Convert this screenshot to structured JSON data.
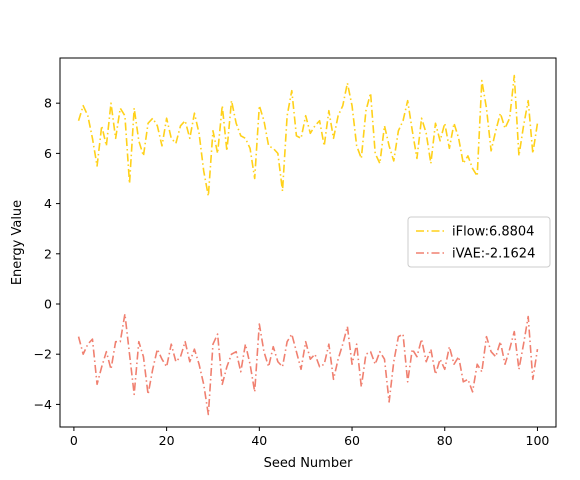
{
  "chart_data": {
    "type": "line",
    "title": "",
    "xlabel": "Seed Number",
    "ylabel": "Energy Value",
    "xlim": [
      -3,
      104
    ],
    "ylim": [
      -4.9,
      9.8
    ],
    "xticks": [
      0,
      20,
      40,
      60,
      80,
      100
    ],
    "yticks": [
      -4,
      -2,
      0,
      2,
      4,
      6,
      8
    ],
    "grid": false,
    "legend_position": "center-right",
    "series": [
      {
        "name": "iFlow:6.8804",
        "color": "#FFD11A",
        "linestyle": "dashdot",
        "x": [
          1,
          2,
          3,
          4,
          5,
          6,
          7,
          8,
          9,
          10,
          11,
          12,
          13,
          14,
          15,
          16,
          17,
          18,
          19,
          20,
          21,
          22,
          23,
          24,
          25,
          26,
          27,
          28,
          29,
          30,
          31,
          32,
          33,
          34,
          35,
          36,
          37,
          38,
          39,
          40,
          41,
          42,
          43,
          44,
          45,
          46,
          47,
          48,
          49,
          50,
          51,
          52,
          53,
          54,
          55,
          56,
          57,
          58,
          59,
          60,
          61,
          62,
          63,
          64,
          65,
          66,
          67,
          68,
          69,
          70,
          71,
          72,
          73,
          74,
          75,
          76,
          77,
          78,
          79,
          80,
          81,
          82,
          83,
          84,
          85,
          86,
          87,
          88,
          89,
          90,
          91,
          92,
          93,
          94,
          95,
          96,
          97,
          98,
          99,
          100
        ],
        "y": [
          7.3,
          7.9,
          7.5,
          6.6,
          5.5,
          7.1,
          6.3,
          8.0,
          6.6,
          7.8,
          7.5,
          4.8,
          7.8,
          6.5,
          5.9,
          7.2,
          7.4,
          7.1,
          6.3,
          7.4,
          6.6,
          6.4,
          7.1,
          7.3,
          6.6,
          7.6,
          6.8,
          5.3,
          4.3,
          6.9,
          6.0,
          7.9,
          6.1,
          8.1,
          7.2,
          6.7,
          6.6,
          6.2,
          5.0,
          7.9,
          7.3,
          6.3,
          6.2,
          6.0,
          4.5,
          7.5,
          8.5,
          6.7,
          6.6,
          7.5,
          6.8,
          7.1,
          7.3,
          6.3,
          7.7,
          6.6,
          7.5,
          7.9,
          8.8,
          7.9,
          6.3,
          5.8,
          7.7,
          8.4,
          6.0,
          5.6,
          7.1,
          6.3,
          5.7,
          6.9,
          7.3,
          8.1,
          6.9,
          5.8,
          7.4,
          6.8,
          5.6,
          7.2,
          6.5,
          7.2,
          6.2,
          7.2,
          6.6,
          5.6,
          5.9,
          5.4,
          5.1,
          8.9,
          7.8,
          6.1,
          6.9,
          7.6,
          7.0,
          7.4,
          9.1,
          5.9,
          7.1,
          8.1,
          6.0,
          7.2
        ]
      },
      {
        "name": "iVAE:-2.1624",
        "color": "#F08070",
        "linestyle": "dashdot",
        "x": [
          1,
          2,
          3,
          4,
          5,
          6,
          7,
          8,
          9,
          10,
          11,
          12,
          13,
          14,
          15,
          16,
          17,
          18,
          19,
          20,
          21,
          22,
          23,
          24,
          25,
          26,
          27,
          28,
          29,
          30,
          31,
          32,
          33,
          34,
          35,
          36,
          37,
          38,
          39,
          40,
          41,
          42,
          43,
          44,
          45,
          46,
          47,
          48,
          49,
          50,
          51,
          52,
          53,
          54,
          55,
          56,
          57,
          58,
          59,
          60,
          61,
          62,
          63,
          64,
          65,
          66,
          67,
          68,
          69,
          70,
          71,
          72,
          73,
          74,
          75,
          76,
          77,
          78,
          79,
          80,
          81,
          82,
          83,
          84,
          85,
          86,
          87,
          88,
          89,
          90,
          91,
          92,
          93,
          94,
          95,
          96,
          97,
          98,
          99,
          100
        ],
        "y": [
          -1.3,
          -2.0,
          -1.6,
          -1.4,
          -3.2,
          -2.5,
          -1.9,
          -2.6,
          -1.5,
          -1.5,
          -0.4,
          -2.0,
          -3.6,
          -1.5,
          -2.1,
          -3.6,
          -2.6,
          -1.8,
          -2.2,
          -2.5,
          -1.6,
          -2.3,
          -2.1,
          -1.5,
          -2.3,
          -1.8,
          -2.4,
          -3.2,
          -4.4,
          -1.6,
          -1.2,
          -3.2,
          -2.5,
          -2.0,
          -1.9,
          -2.7,
          -1.6,
          -2.4,
          -3.5,
          -0.8,
          -1.9,
          -2.5,
          -1.7,
          -2.3,
          -2.5,
          -1.5,
          -1.2,
          -1.9,
          -2.6,
          -1.5,
          -2.2,
          -2.0,
          -2.5,
          -2.4,
          -1.6,
          -3.0,
          -2.2,
          -1.6,
          -0.9,
          -2.4,
          -1.6,
          -3.3,
          -2.0,
          -1.9,
          -2.4,
          -1.9,
          -2.2,
          -3.9,
          -2.3,
          -1.3,
          -1.2,
          -3.1,
          -1.8,
          -2.1,
          -1.4,
          -2.3,
          -1.8,
          -2.8,
          -2.2,
          -2.6,
          -1.7,
          -2.4,
          -2.1,
          -3.1,
          -3.0,
          -3.5,
          -2.4,
          -2.7,
          -1.3,
          -1.9,
          -2.1,
          -1.5,
          -2.4,
          -1.8,
          -1.1,
          -2.6,
          -1.6,
          -0.5,
          -3.0,
          -1.8
        ]
      }
    ]
  }
}
